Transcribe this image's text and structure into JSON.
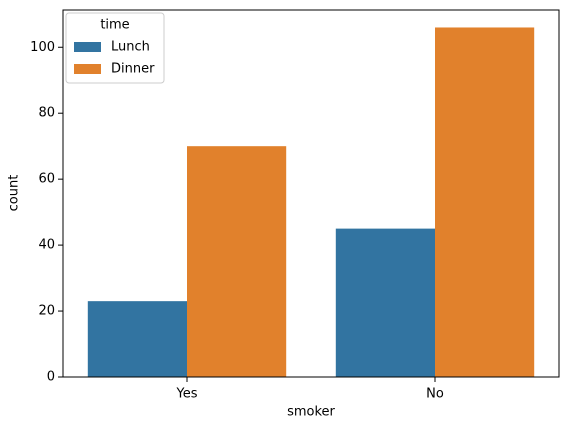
{
  "chart_data": {
    "type": "bar",
    "x_label": "smoker",
    "y_label": "count",
    "categories": [
      "Yes",
      "No"
    ],
    "legend_title": "time",
    "legend_position": "upper left",
    "series": [
      {
        "name": "Lunch",
        "color": "#3274a1",
        "values": [
          23,
          45
        ]
      },
      {
        "name": "Dinner",
        "color": "#e1812c",
        "values": [
          70,
          106
        ]
      }
    ],
    "ylim": [
      0,
      111.3
    ],
    "yticks": [
      0,
      20,
      40,
      60,
      80,
      100
    ]
  }
}
